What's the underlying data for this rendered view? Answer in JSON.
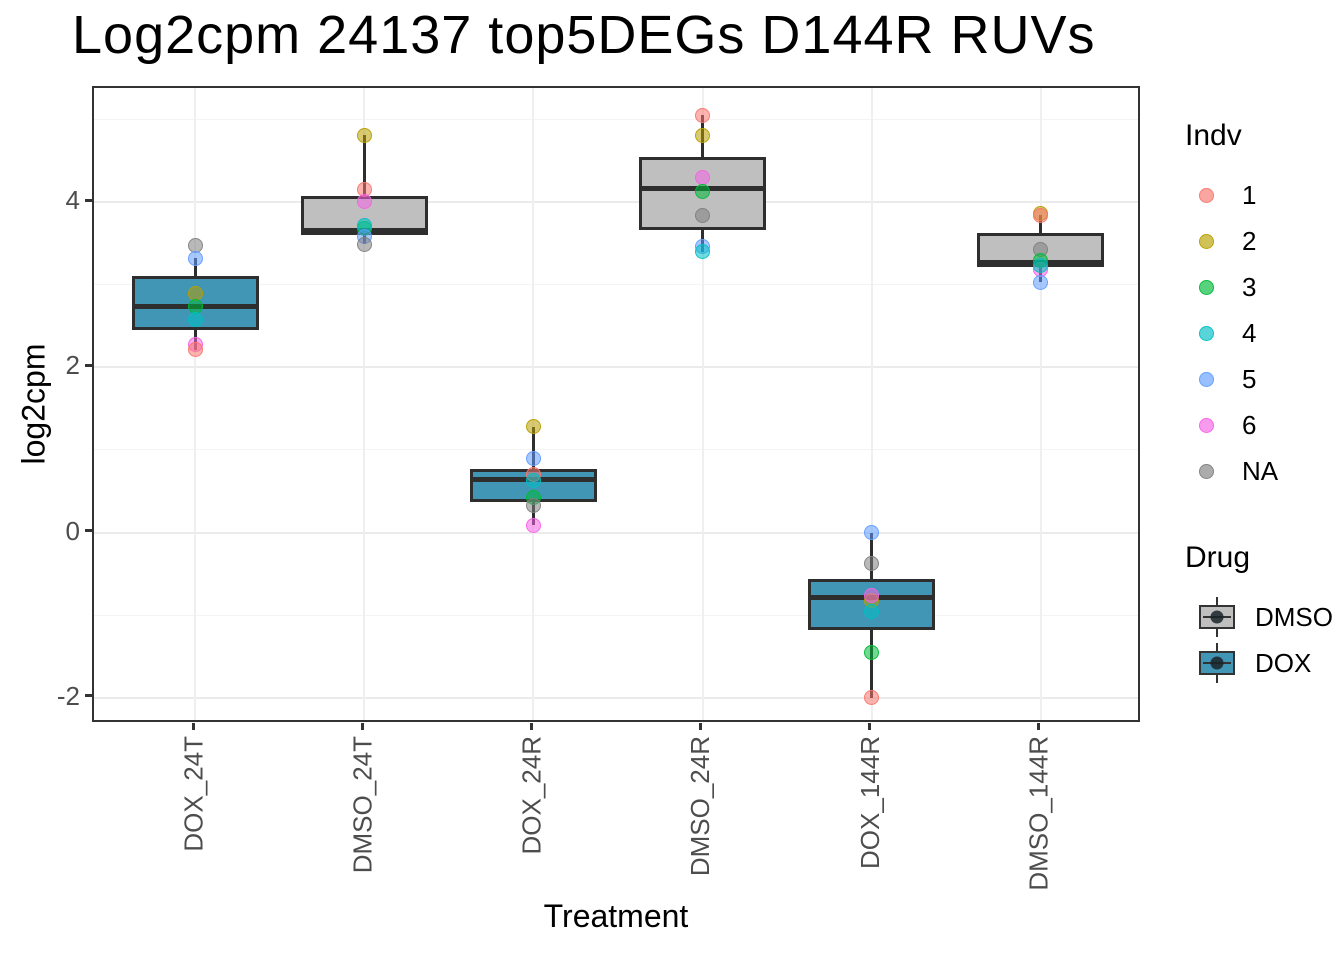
{
  "title": "Log2cpm 24137 top5DEGs D144R RUVs",
  "chart_data": {
    "type": "boxplot",
    "title": "Log2cpm 24137 top5DEGs D144R RUVs",
    "xlabel": "Treatment",
    "ylabel": "log2cpm",
    "ylim": [
      -2.32,
      5.38
    ],
    "grid": true,
    "legend_position": "right",
    "yticks": [
      4,
      2,
      0,
      -2
    ],
    "ytick_labels": [
      "4",
      "2",
      "0",
      "-2"
    ],
    "yticks_minor": [
      5,
      3,
      1,
      -1
    ],
    "categories": [
      "DOX_24T",
      "DMSO_24T",
      "DOX_24R",
      "DMSO_24R",
      "DOX_144R",
      "DMSO_144R"
    ],
    "groups": [
      {
        "category": "DOX_24T",
        "drug": "DOX",
        "q1": 2.45,
        "median": 2.73,
        "q3": 3.1,
        "whisker_low": 2.21,
        "whisker_high": 3.32,
        "points": [
          {
            "indv": "NA",
            "value": 3.47
          },
          {
            "indv": "5",
            "value": 3.32
          },
          {
            "indv": "2",
            "value": 2.89
          },
          {
            "indv": "3",
            "value": 2.73
          },
          {
            "indv": "4",
            "value": 2.58
          },
          {
            "indv": "6",
            "value": 2.27
          },
          {
            "indv": "1",
            "value": 2.21
          }
        ]
      },
      {
        "category": "DMSO_24T",
        "drug": "DMSO",
        "q1": 3.6,
        "median": 3.66,
        "q3": 4.07,
        "whisker_low": 3.49,
        "whisker_high": 4.81,
        "points": [
          {
            "indv": "2",
            "value": 4.81
          },
          {
            "indv": "1",
            "value": 4.15
          },
          {
            "indv": "6",
            "value": 4.01
          },
          {
            "indv": "3",
            "value": 3.68
          },
          {
            "indv": "4",
            "value": 3.71
          },
          {
            "indv": "5",
            "value": 3.58
          },
          {
            "indv": "NA",
            "value": 3.49
          }
        ]
      },
      {
        "category": "DOX_24R",
        "drug": "DOX",
        "q1": 0.37,
        "median": 0.64,
        "q3": 0.77,
        "whisker_low": 0.09,
        "whisker_high": 1.28,
        "points": [
          {
            "indv": "2",
            "value": 1.28
          },
          {
            "indv": "5",
            "value": 0.89
          },
          {
            "indv": "1",
            "value": 0.7
          },
          {
            "indv": "4",
            "value": 0.63
          },
          {
            "indv": "3",
            "value": 0.42
          },
          {
            "indv": "NA",
            "value": 0.33
          },
          {
            "indv": "6",
            "value": 0.09
          }
        ]
      },
      {
        "category": "DMSO_24R",
        "drug": "DMSO",
        "q1": 3.66,
        "median": 4.16,
        "q3": 4.54,
        "whisker_low": 3.4,
        "whisker_high": 5.05,
        "points": [
          {
            "indv": "1",
            "value": 5.05
          },
          {
            "indv": "2",
            "value": 4.8
          },
          {
            "indv": "6",
            "value": 4.3
          },
          {
            "indv": "3",
            "value": 4.13
          },
          {
            "indv": "NA",
            "value": 3.84
          },
          {
            "indv": "5",
            "value": 3.46
          },
          {
            "indv": "4",
            "value": 3.4
          }
        ]
      },
      {
        "category": "DOX_144R",
        "drug": "DOX",
        "q1": -1.18,
        "median": -0.79,
        "q3": -0.56,
        "whisker_low": -2.0,
        "whisker_high": 0.0,
        "points": [
          {
            "indv": "5",
            "value": 0.0
          },
          {
            "indv": "NA",
            "value": -0.37
          },
          {
            "indv": "2",
            "value": -0.82
          },
          {
            "indv": "6",
            "value": -0.76
          },
          {
            "indv": "4",
            "value": -0.96
          },
          {
            "indv": "3",
            "value": -1.45
          },
          {
            "indv": "1",
            "value": -2.0
          }
        ]
      },
      {
        "category": "DMSO_144R",
        "drug": "DMSO",
        "q1": 3.21,
        "median": 3.27,
        "q3": 3.63,
        "whisker_low": 3.03,
        "whisker_high": 3.84,
        "points": [
          {
            "indv": "2",
            "value": 3.86
          },
          {
            "indv": "1",
            "value": 3.84
          },
          {
            "indv": "NA",
            "value": 3.42
          },
          {
            "indv": "6",
            "value": 3.18
          },
          {
            "indv": "3",
            "value": 3.29
          },
          {
            "indv": "4",
            "value": 3.23
          },
          {
            "indv": "5",
            "value": 3.03
          }
        ]
      }
    ]
  },
  "legend": {
    "indv": {
      "title": "Indv",
      "items": [
        {
          "label": "1",
          "color": "#F8766D"
        },
        {
          "label": "2",
          "color": "#B79F00"
        },
        {
          "label": "3",
          "color": "#00BA38"
        },
        {
          "label": "4",
          "color": "#00BFC4"
        },
        {
          "label": "5",
          "color": "#619CFF"
        },
        {
          "label": "6",
          "color": "#F564E3"
        },
        {
          "label": "NA",
          "color": "#7F7F7F"
        }
      ]
    },
    "drug": {
      "title": "Drug",
      "items": [
        {
          "label": "DMSO",
          "fill": "#BFBFBF"
        },
        {
          "label": "DOX",
          "fill": "#4296B5"
        }
      ]
    }
  },
  "colors": {
    "dox_fill": "#4296B5",
    "dmso_fill": "#BFBFBF",
    "box_border": "#2E2E2E",
    "median_line": "#2E2E2E",
    "grid_major": "#EBEBEB",
    "grid_minor": "#F4F4F4",
    "axis_text": "#4D4D4D",
    "panel_border": "#333333",
    "indv": {
      "1": "#F8766D",
      "2": "#B79F00",
      "3": "#00BA38",
      "4": "#00BFC4",
      "5": "#619CFF",
      "6": "#F564E3",
      "NA": "#7F7F7F"
    }
  }
}
